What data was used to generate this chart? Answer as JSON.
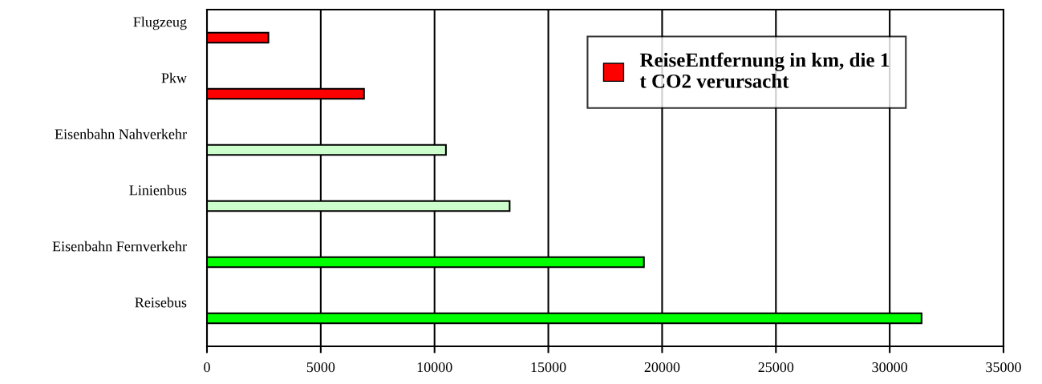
{
  "chart_data": {
    "type": "bar",
    "orientation": "horizontal",
    "categories": [
      "Flugzeug",
      "Pkw",
      "Eisenbahn Nahverkehr",
      "Linienbus",
      "Eisenbahn Fernverkehr",
      "Reisebus"
    ],
    "series": [
      {
        "name": "ReiseEntfernung in km, die 1\nt CO2 verursacht",
        "color": "#ff0000",
        "colors": [
          "#ff0000",
          "#ff0000",
          "#ccffcc",
          "#ccffcc",
          "#00ff00",
          "#00ff00"
        ],
        "values": [
          2700,
          6900,
          10500,
          13300,
          19200,
          31400
        ]
      }
    ],
    "xlim": [
      0,
      35000
    ],
    "xticks": [
      0,
      5000,
      10000,
      15000,
      20000,
      25000,
      30000,
      35000
    ],
    "grid": "x",
    "legend": "top right"
  }
}
